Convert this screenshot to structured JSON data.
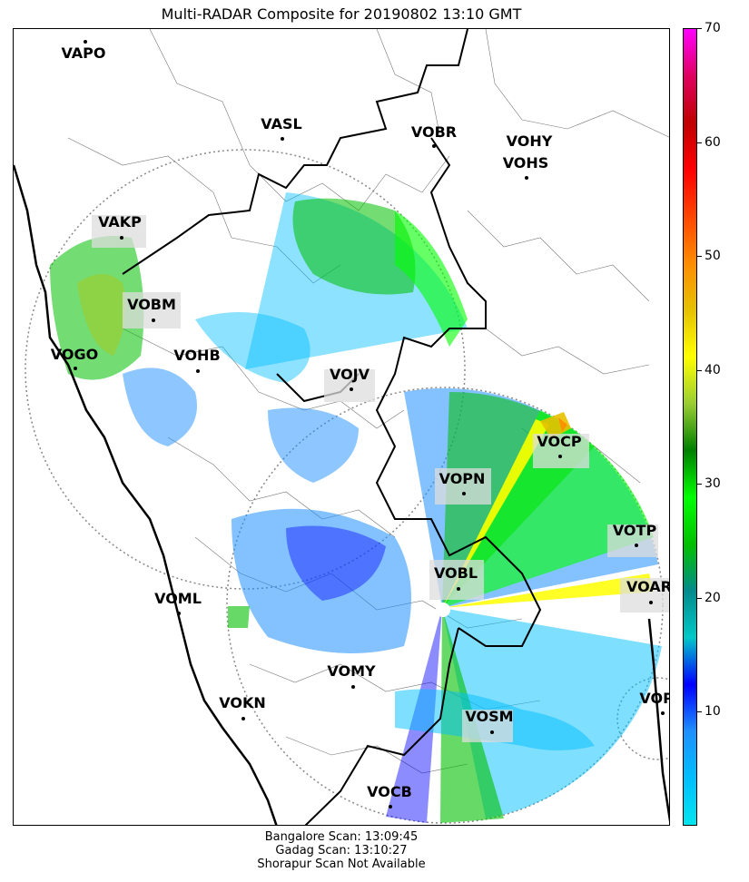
{
  "title": "Multi-RADAR Composite for 20190802 13:10 GMT",
  "stations": [
    {
      "name": "VAPO"
    },
    {
      "name": "VASL"
    },
    {
      "name": "VOBR"
    },
    {
      "name": "VOHY"
    },
    {
      "name": "VOHS"
    },
    {
      "name": "VAKP"
    },
    {
      "name": "VOBM"
    },
    {
      "name": "VOGO"
    },
    {
      "name": "VOHB"
    },
    {
      "name": "VOJV"
    },
    {
      "name": "VOCP"
    },
    {
      "name": "VOPN"
    },
    {
      "name": "VOTP"
    },
    {
      "name": "VOBL"
    },
    {
      "name": "VOAR"
    },
    {
      "name": "VOML"
    },
    {
      "name": "VOMY"
    },
    {
      "name": "VOKN"
    },
    {
      "name": "VOPC"
    },
    {
      "name": "VOSM"
    },
    {
      "name": "VOCB"
    }
  ],
  "colorbar": {
    "min": 0,
    "max": 70,
    "ticks": [
      "10",
      "20",
      "30",
      "40",
      "50",
      "60",
      "70"
    ],
    "colors": [
      "#00e5ee",
      "#00bfff",
      "#1e90ff",
      "#0000ff",
      "#00c8c8",
      "#008b8b",
      "#00c000",
      "#00ff00",
      "#008000",
      "#9acd32",
      "#ffff00",
      "#e5c100",
      "#ff8c00",
      "#ff4500",
      "#ff0000",
      "#c00000",
      "#e00060",
      "#ff00ff"
    ]
  },
  "footer": {
    "line1": "Bangalore Scan: 13:09:45",
    "line2": "Gadag Scan: 13:10:27",
    "line3": "Shorapur Scan Not Available"
  }
}
